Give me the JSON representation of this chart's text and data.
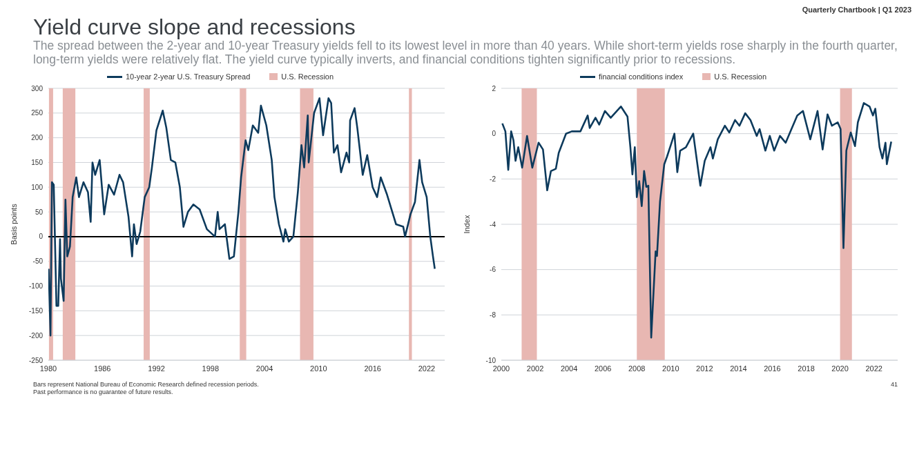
{
  "chart_data": [
    {
      "type": "line",
      "title": "Yield curve slope and recessions",
      "subtitle": "The spread between the 2-year and 10-year Treasury yields fell to its lowest level in more than 40 years. While short-term yields rose sharply in the fourth quarter, long-term yields were relatively flat. The yield curve typically inverts, and financial conditions tighten significantly prior to recessions.",
      "annotations": [
        "Quarterly Chartbook | Q1 2023",
        "Bars represent National Bureau of Economic Research defined recession periods.",
        "Past performance is no guarantee of future results.",
        "41"
      ],
      "ylabel": "Basis points",
      "xlim": [
        1980,
        2024
      ],
      "xticks": [
        1980,
        1986,
        1992,
        1998,
        2004,
        2010,
        2016,
        2022
      ],
      "ylim": [
        -250,
        300
      ],
      "yticks": [
        -250,
        -200,
        -150,
        -100,
        -50,
        0,
        50,
        100,
        150,
        200,
        250,
        300
      ],
      "grid": "y",
      "legend": "top",
      "series": [
        {
          "name": "10-year 2-year U.S. Treasury Spread",
          "color": "#0d3a5c",
          "x": [
            1980.04,
            1980.24,
            1980.4,
            1980.6,
            1980.9,
            1981.1,
            1981.3,
            1981.4,
            1981.7,
            1981.9,
            1982.1,
            1982.4,
            1982.7,
            1983.1,
            1983.4,
            1983.9,
            1984.4,
            1984.7,
            1984.9,
            1985.2,
            1985.7,
            1986.2,
            1986.7,
            1987.3,
            1987.9,
            1988.3,
            1988.9,
            1989.3,
            1989.5,
            1989.8,
            1990.2,
            1990.7,
            1991.2,
            1991.5,
            1992.0,
            1992.7,
            1993.1,
            1993.6,
            1994.1,
            1994.6,
            1995.0,
            1995.5,
            1996.1,
            1996.8,
            1997.6,
            1998.5,
            1998.8,
            1999.0,
            1999.6,
            2000.1,
            2000.6,
            2001.1,
            2001.4,
            2001.9,
            2002.2,
            2002.7,
            2003.3,
            2003.6,
            2004.2,
            2004.8,
            2005.1,
            2005.6,
            2006.1,
            2006.3,
            2006.7,
            2007.2,
            2007.7,
            2008.1,
            2008.4,
            2008.8,
            2008.9,
            2009.5,
            2010.1,
            2010.5,
            2011.1,
            2011.4,
            2011.7,
            2012.1,
            2012.5,
            2013.1,
            2013.4,
            2013.5,
            2014.0,
            2014.3,
            2014.9,
            2015.4,
            2016.0,
            2016.5,
            2016.9,
            2017.6,
            2018.1,
            2018.6,
            2019.4,
            2019.6,
            2020.2,
            2020.7,
            2021.2,
            2021.5,
            2022.0,
            2022.4,
            2022.7,
            2022.9
          ],
          "values": [
            -65,
            -200,
            110,
            105,
            -140,
            -140,
            -5,
            -85,
            -130,
            75,
            -40,
            -20,
            80,
            120,
            80,
            110,
            90,
            30,
            150,
            125,
            155,
            45,
            105,
            85,
            125,
            110,
            40,
            -40,
            25,
            -15,
            10,
            80,
            100,
            140,
            215,
            255,
            220,
            155,
            150,
            100,
            20,
            50,
            65,
            55,
            15,
            0,
            50,
            15,
            25,
            -45,
            -40,
            50,
            120,
            195,
            175,
            225,
            210,
            265,
            225,
            155,
            80,
            25,
            -10,
            15,
            -10,
            0,
            90,
            185,
            140,
            245,
            150,
            250,
            280,
            205,
            280,
            270,
            170,
            185,
            130,
            170,
            150,
            235,
            260,
            220,
            125,
            165,
            100,
            80,
            120,
            85,
            55,
            25,
            20,
            0,
            45,
            70,
            155,
            110,
            80,
            0,
            -40,
            -65
          ]
        }
      ],
      "bands": [
        {
          "axis": "x",
          "from": 1980.07,
          "to": 1980.53,
          "label": "U.S. Recession",
          "color": "#e8b7b2"
        },
        {
          "axis": "x",
          "from": 1981.6,
          "to": 1983.0,
          "color": "#e8b7b2"
        },
        {
          "axis": "x",
          "from": 1990.58,
          "to": 1991.26,
          "color": "#e8b7b2"
        },
        {
          "axis": "x",
          "from": 2001.25,
          "to": 2001.97,
          "color": "#e8b7b2"
        },
        {
          "axis": "x",
          "from": 2007.94,
          "to": 2009.43,
          "color": "#e8b7b2"
        },
        {
          "axis": "x",
          "from": 2020.03,
          "to": 2020.36,
          "color": "#e8b7b2"
        }
      ],
      "ref_lines": [
        {
          "axis": "y",
          "value": 0,
          "color": "#000000"
        }
      ]
    },
    {
      "type": "line",
      "ylabel": "Index",
      "xlim": [
        2000,
        2023.4
      ],
      "xticks": [
        2000,
        2002,
        2004,
        2006,
        2008,
        2010,
        2012,
        2014,
        2016,
        2018,
        2020,
        2022
      ],
      "ylim": [
        -10,
        2
      ],
      "yticks": [
        -10,
        -8,
        -6,
        -4,
        -2,
        0,
        2
      ],
      "grid": "y",
      "legend": "top",
      "series": [
        {
          "name": "financial conditions index",
          "color": "#0d3a5c",
          "x": [
            2000.06,
            2000.24,
            2000.41,
            2000.58,
            2000.72,
            2000.84,
            2001.0,
            2001.23,
            2001.52,
            2001.83,
            2002.2,
            2002.46,
            2002.71,
            2002.93,
            2003.22,
            2003.39,
            2003.82,
            2004.16,
            2004.67,
            2005.1,
            2005.22,
            2005.56,
            2005.78,
            2006.12,
            2006.46,
            2007.06,
            2007.45,
            2007.62,
            2007.74,
            2007.88,
            2008.0,
            2008.14,
            2008.29,
            2008.43,
            2008.56,
            2008.68,
            2008.85,
            2009.11,
            2009.19,
            2009.37,
            2009.62,
            2009.79,
            2010.05,
            2010.22,
            2010.39,
            2010.56,
            2010.9,
            2011.33,
            2011.75,
            2012.01,
            2012.35,
            2012.49,
            2012.78,
            2013.2,
            2013.46,
            2013.8,
            2014.06,
            2014.4,
            2014.71,
            2015.08,
            2015.25,
            2015.59,
            2015.85,
            2016.11,
            2016.45,
            2016.79,
            2017.13,
            2017.47,
            2017.81,
            2018.24,
            2018.67,
            2018.97,
            2019.26,
            2019.52,
            2019.86,
            2020.03,
            2020.2,
            2020.37,
            2020.63,
            2020.88,
            2021.05,
            2021.4,
            2021.74,
            2021.94,
            2022.08,
            2022.33,
            2022.5,
            2022.68,
            2022.76,
            2023.02
          ],
          "values": [
            0.45,
            0.1,
            -1.6,
            0.1,
            -0.3,
            -1.2,
            -0.6,
            -1.5,
            -0.1,
            -1.5,
            -0.4,
            -0.7,
            -2.5,
            -1.65,
            -1.55,
            -0.85,
            0.0,
            0.1,
            0.1,
            0.8,
            0.25,
            0.7,
            0.4,
            1.0,
            0.7,
            1.2,
            0.75,
            -0.6,
            -1.8,
            -0.6,
            -2.8,
            -2.1,
            -3.2,
            -1.65,
            -2.35,
            -2.3,
            -9.0,
            -5.2,
            -5.4,
            -3.0,
            -1.35,
            -1.0,
            -0.4,
            0.0,
            -1.7,
            -0.75,
            -0.6,
            0.0,
            -2.3,
            -1.2,
            -0.6,
            -1.1,
            -0.25,
            0.35,
            0.05,
            0.6,
            0.35,
            0.9,
            0.6,
            -0.1,
            0.2,
            -0.75,
            -0.1,
            -0.75,
            -0.1,
            -0.4,
            0.2,
            0.8,
            1.0,
            -0.25,
            1.0,
            -0.7,
            0.85,
            0.35,
            0.5,
            0.2,
            -5.05,
            -0.75,
            0.05,
            -0.55,
            0.5,
            1.35,
            1.2,
            0.8,
            1.1,
            -0.6,
            -1.1,
            -0.4,
            -1.35,
            -0.35
          ]
        }
      ],
      "bands": [
        {
          "axis": "x",
          "from": 2001.2,
          "to": 2002.1,
          "label": "U.S. Recession",
          "color": "#e8b7b2"
        },
        {
          "axis": "x",
          "from": 2008.0,
          "to": 2009.65,
          "color": "#e8b7b2"
        },
        {
          "axis": "x",
          "from": 2020.0,
          "to": 2020.7,
          "color": "#e8b7b2"
        }
      ]
    }
  ]
}
